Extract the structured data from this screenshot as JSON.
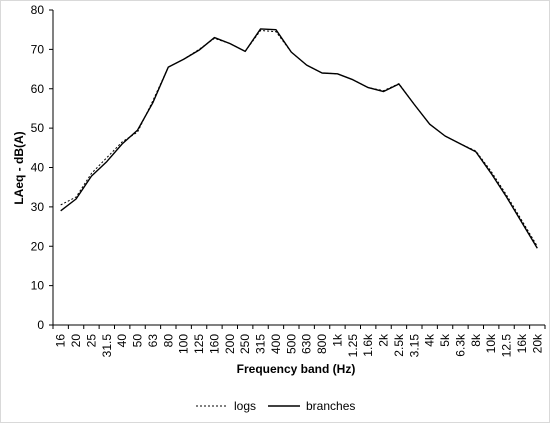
{
  "chart_data": {
    "type": "line",
    "xlabel": "Frequency band (Hz)",
    "ylabel": "LAeq - dB(A)",
    "ylim": [
      0,
      80
    ],
    "yticks": [
      0,
      10,
      20,
      30,
      40,
      50,
      60,
      70,
      80
    ],
    "grid": false,
    "legend_position": "bottom",
    "categories": [
      "16",
      "20",
      "25",
      "31.5",
      "40",
      "50",
      "63",
      "80",
      "100",
      "125",
      "160",
      "200",
      "250",
      "315",
      "400",
      "500",
      "630",
      "800",
      "1k",
      "1.25",
      "1.6k",
      "2k",
      "2.5k",
      "3.15",
      "4k",
      "5k",
      "6.3k",
      "8k",
      "10k",
      "12.5",
      "16k",
      "20k"
    ],
    "series": [
      {
        "name": "logs",
        "style": "dotted",
        "color": "#000000",
        "values": [
          30.5,
          32.5,
          38.5,
          42.5,
          46.5,
          49,
          57,
          65.5,
          67.5,
          70,
          72.8,
          71.5,
          69.5,
          74.8,
          74.5,
          69.3,
          66,
          64,
          63.8,
          62.3,
          60.3,
          59.5,
          61.3,
          56,
          51,
          48,
          46,
          44.2,
          39,
          33,
          26.5,
          20
        ]
      },
      {
        "name": "branches",
        "style": "solid",
        "color": "#000000",
        "values": [
          29,
          32,
          37.8,
          41.5,
          46,
          49.5,
          56.5,
          65.5,
          67.5,
          69.8,
          73,
          71.5,
          69.5,
          75.2,
          75,
          69.3,
          66,
          64,
          63.8,
          62.3,
          60.3,
          59.3,
          61.2,
          56,
          51,
          48,
          46,
          44,
          38.5,
          32.5,
          26,
          19.5
        ]
      }
    ]
  }
}
